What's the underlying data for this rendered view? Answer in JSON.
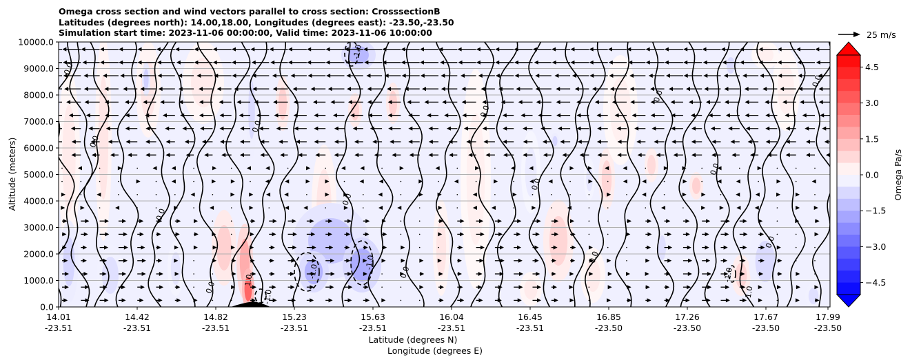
{
  "chart_data": {
    "type": "heatmap",
    "title_lines": [
      "Omega cross section and wind vectors parallel to cross section: CrosssectionB",
      "Latitudes (degrees north): 14.00,18.00, Longitudes (degrees east): -23.50,-23.50",
      "Simulation start time: 2023-11-06 00:00:00, Valid time: 2023-11-06 10:00:00"
    ],
    "ylabel": "Altitude (meters)",
    "xlabel_line1": "Latitude (degrees N)",
    "xlabel_line2": "Longitude (degrees E)",
    "ylim": [
      0,
      10000
    ],
    "yticks": [
      "0.0",
      "1000.0",
      "2000.0",
      "3000.0",
      "4000.0",
      "5000.0",
      "6000.0",
      "7000.0",
      "8000.0",
      "9000.0",
      "10000.0"
    ],
    "xticks": [
      {
        "lat": "14.01",
        "lon": "-23.51"
      },
      {
        "lat": "14.42",
        "lon": "-23.51"
      },
      {
        "lat": "14.82",
        "lon": "-23.51"
      },
      {
        "lat": "15.23",
        "lon": "-23.51"
      },
      {
        "lat": "15.63",
        "lon": "-23.51"
      },
      {
        "lat": "16.04",
        "lon": "-23.51"
      },
      {
        "lat": "16.45",
        "lon": "-23.51"
      },
      {
        "lat": "16.85",
        "lon": "-23.50"
      },
      {
        "lat": "17.26",
        "lon": "-23.50"
      },
      {
        "lat": "17.67",
        "lon": "-23.50"
      },
      {
        "lat": "17.99",
        "lon": "-23.50"
      }
    ],
    "grid": "horizontal",
    "colorbar": {
      "label": "Omega Pa/s",
      "range": [
        -5.0,
        5.0
      ],
      "ticks": [
        "4.5",
        "3.0",
        "1.5",
        "0.0",
        "−1.5",
        "−3.0",
        "−4.5"
      ],
      "colormap": "bwr",
      "extend": "both"
    },
    "quiver_key": "25 m/s",
    "contour_labels": [
      "0.0",
      "-1.0",
      "1.0"
    ],
    "colors": {
      "positive": "#ff0000",
      "negative": "#0000ff",
      "neutral": "#ffffff",
      "terrain": "#000000"
    }
  }
}
